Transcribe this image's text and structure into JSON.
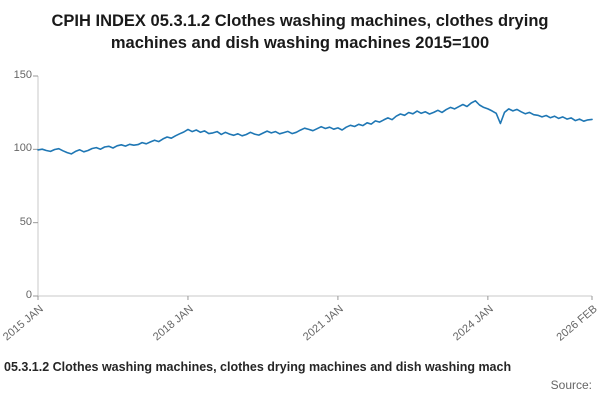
{
  "title": "CPIH INDEX 05.3.1.2 Clothes washing machines, clothes drying machines and dish washing machines 2015=100",
  "caption": "05.3.1.2 Clothes washing machines, clothes drying machines and dish washing mach",
  "source_label": "Source:",
  "accent_color": "#1f77b4",
  "axis_color": "#c8c8c8",
  "tick_color": "#999999",
  "chart_data": {
    "type": "line",
    "title": "CPIH INDEX 05.3.1.2 Clothes washing machines, clothes drying machines and dish washing machines 2015=100",
    "xlabel": "",
    "ylabel": "",
    "ylim": [
      0,
      150
    ],
    "grid": false,
    "legend_position": "none",
    "x_unit": "month",
    "x_start": "2015 JAN",
    "x_end": "2026 FEB",
    "ytick_values": [
      150,
      100,
      50,
      0
    ],
    "ytick_labels": [
      "150",
      "100",
      "50",
      "0"
    ],
    "xtick_indices": [
      0,
      36,
      72,
      108,
      133
    ],
    "xtick_labels": [
      "2015 JAN",
      "2018 JAN",
      "2021 JAN",
      "2024 JAN",
      "2026 FEB"
    ],
    "series": [
      {
        "name": "05.3.1.2 Clothes washing machines, clothes drying machines and dish washing machines",
        "values": [
          99.6,
          100.1,
          99.2,
          98.6,
          99.9,
          100.4,
          99.0,
          97.8,
          96.9,
          98.6,
          99.7,
          98.3,
          99.2,
          100.6,
          101.2,
          100.1,
          101.6,
          102.1,
          100.9,
          102.4,
          103.1,
          102.2,
          103.4,
          102.8,
          103.2,
          104.6,
          103.8,
          105.1,
          106.2,
          105.3,
          107.1,
          108.4,
          107.6,
          109.2,
          110.6,
          111.8,
          113.6,
          112.1,
          113.2,
          111.6,
          112.6,
          110.7,
          111.2,
          112.1,
          110.2,
          111.6,
          110.4,
          109.6,
          110.6,
          109.2,
          110.1,
          111.6,
          110.4,
          109.7,
          111.1,
          112.4,
          111.2,
          112.1,
          110.6,
          111.4,
          112.2,
          110.7,
          111.6,
          113.1,
          114.4,
          113.6,
          112.7,
          114.1,
          115.4,
          114.2,
          115.1,
          113.7,
          114.6,
          113.2,
          115.1,
          116.4,
          115.6,
          117.1,
          116.2,
          118.1,
          117.2,
          119.4,
          118.6,
          120.1,
          121.4,
          120.2,
          122.6,
          124.1,
          123.2,
          125.1,
          124.2,
          126.1,
          124.6,
          125.6,
          124.1,
          125.2,
          126.6,
          125.2,
          127.1,
          128.6,
          127.6,
          129.1,
          130.6,
          129.2,
          131.6,
          133.1,
          130.2,
          128.6,
          127.6,
          126.2,
          124.6,
          117.6,
          125.2,
          127.6,
          126.2,
          127.2,
          125.6,
          124.2,
          125.2,
          123.6,
          123.2,
          122.1,
          123.1,
          121.6,
          122.6,
          121.1,
          122.1,
          120.6,
          121.4,
          119.6,
          120.6,
          119.2,
          120.1,
          120.4
        ]
      }
    ]
  }
}
